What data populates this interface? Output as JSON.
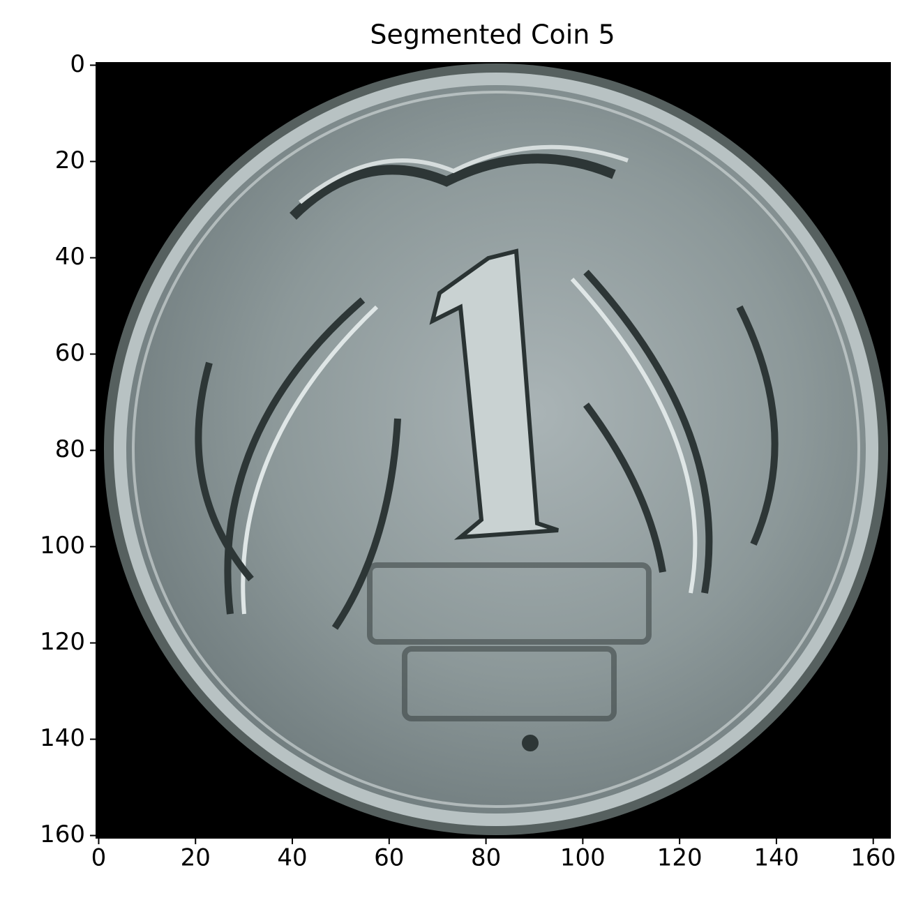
{
  "chart_data": {
    "type": "image",
    "title": "Segmented Coin 5",
    "xlim": [
      -0.5,
      163.5
    ],
    "ylim": [
      160.5,
      -0.5
    ],
    "xticks": [
      0,
      20,
      40,
      60,
      80,
      100,
      120,
      140,
      160
    ],
    "yticks": [
      0,
      20,
      40,
      60,
      80,
      100,
      120,
      140,
      160
    ]
  }
}
